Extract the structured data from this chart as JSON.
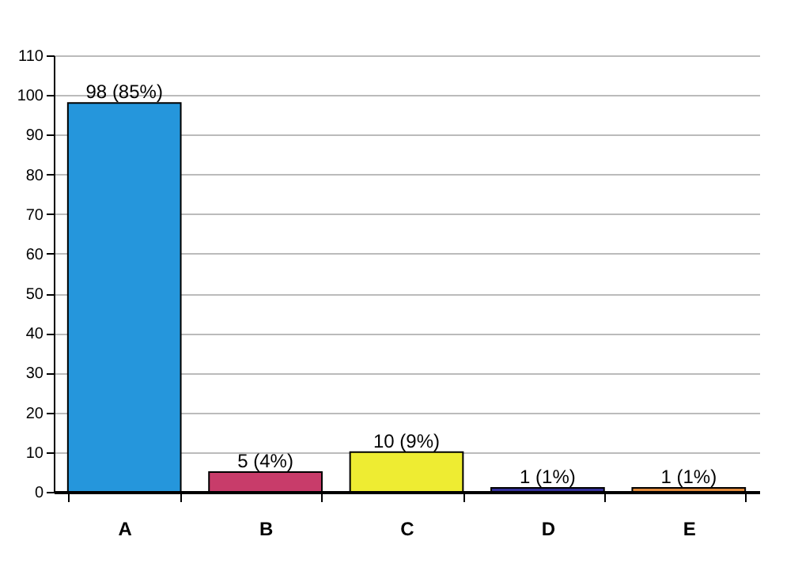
{
  "chart_data": {
    "type": "bar",
    "categories": [
      "A",
      "B",
      "C",
      "D",
      "E"
    ],
    "values": [
      98,
      5,
      10,
      1,
      1
    ],
    "colors": [
      "#2596dc",
      "#c83c6a",
      "#eeec32",
      "#34309a",
      "#e08a3c"
    ],
    "value_labels": [
      "98 (85%)",
      "5 (4%)",
      "10 (9%)",
      "1 (1%)",
      "1 (1%)"
    ],
    "ylim": [
      0,
      110
    ],
    "yticks": [
      0,
      10,
      20,
      30,
      40,
      50,
      60,
      70,
      80,
      90,
      100,
      110
    ],
    "grid": "y"
  }
}
